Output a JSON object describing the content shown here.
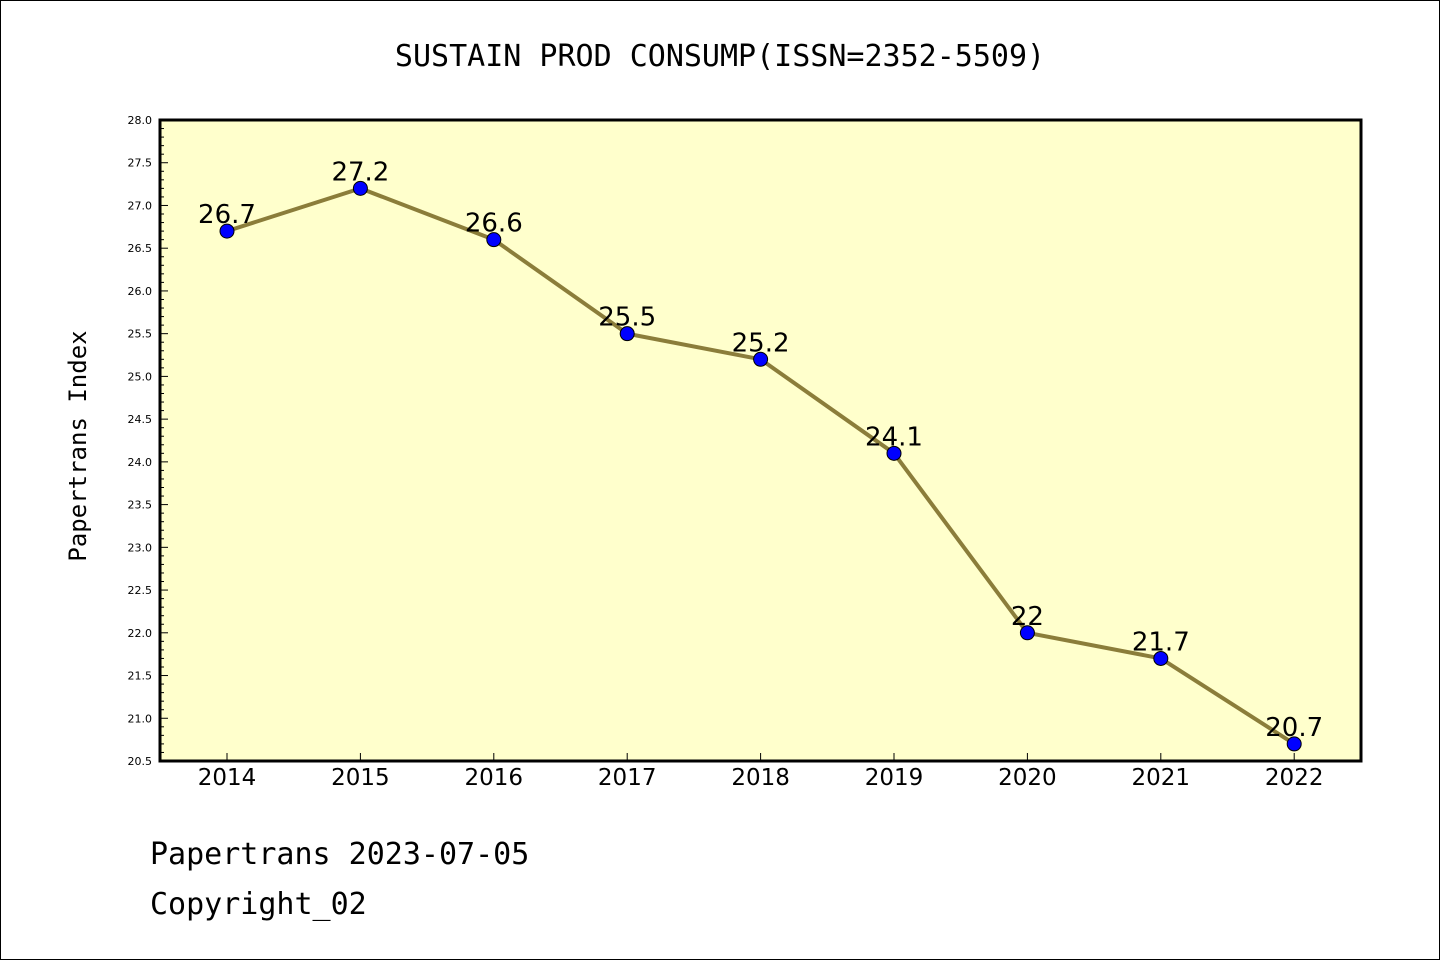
{
  "colors": {
    "plot_background": "#ffffcc",
    "line": "#8b7d3a",
    "marker": "#0000ff",
    "axis": "#000000"
  },
  "chart_data": {
    "type": "line",
    "title": "SUSTAIN PROD CONSUMP(ISSN=2352-5509)",
    "xlabel": "",
    "ylabel": "Papertrans Index",
    "categories": [
      "2014",
      "2015",
      "2016",
      "2017",
      "2018",
      "2019",
      "2020",
      "2021",
      "2022"
    ],
    "series": [
      {
        "values": [
          26.7,
          27.2,
          26.6,
          25.5,
          25.2,
          24.1,
          22.0,
          21.7,
          20.7
        ],
        "data_labels": [
          "26.7",
          "27.2",
          "26.6",
          "25.5",
          "25.2",
          "24.1",
          "22",
          "21.7",
          "20.7"
        ]
      }
    ],
    "ylim": [
      20.5,
      28.0
    ],
    "yticks": [
      "20.5",
      "21.0",
      "21.5",
      "22.0",
      "22.5",
      "23.0",
      "23.5",
      "24.0",
      "24.5",
      "25.0",
      "25.5",
      "26.0",
      "26.5",
      "27.0",
      "27.5",
      "28.0"
    ],
    "grid": false,
    "legend": "none"
  },
  "footer": {
    "line1": "Papertrans 2023-07-05",
    "line2": "Copyright_02"
  }
}
